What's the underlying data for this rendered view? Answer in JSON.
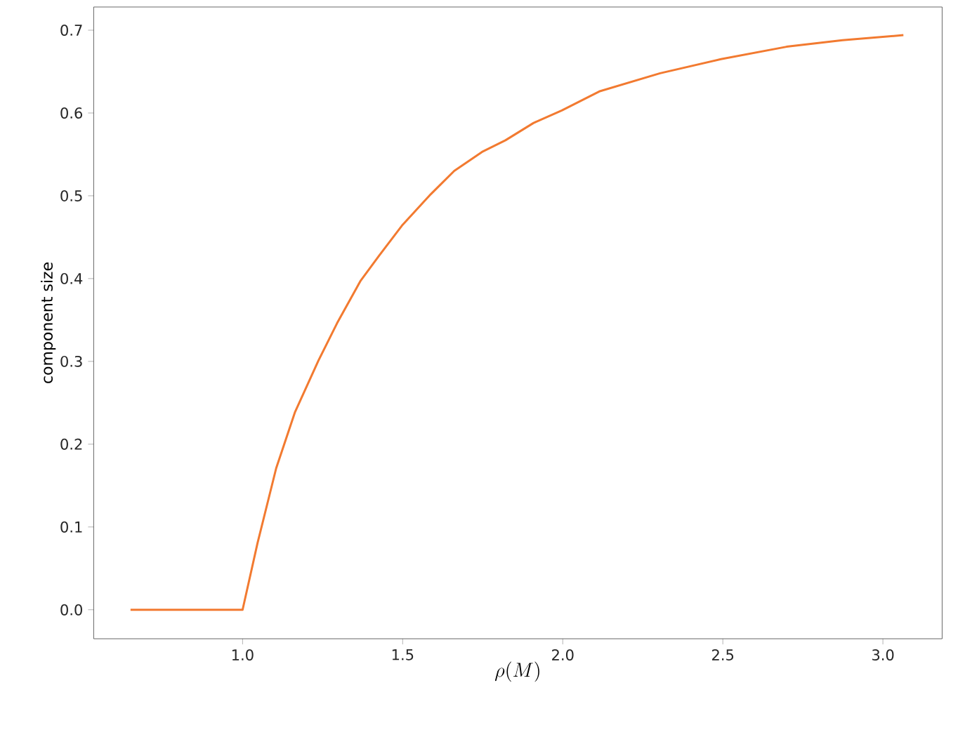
{
  "chart_data": {
    "type": "line",
    "xlabel": "\\rho(M)",
    "ylabel": "component size",
    "x": [
      0.65,
      1.0,
      1.047,
      1.105,
      1.164,
      1.237,
      1.295,
      1.368,
      1.427,
      1.5,
      1.588,
      1.661,
      1.748,
      1.821,
      1.909,
      1.997,
      2.114,
      2.304,
      2.494,
      2.699,
      2.874,
      3.064
    ],
    "series": [
      {
        "color": "#f27a30",
        "values": [
          0,
          0,
          0.081,
          0.171,
          0.239,
          0.301,
          0.346,
          0.397,
          0.428,
          0.465,
          0.502,
          0.53,
          0.553,
          0.567,
          0.588,
          0.603,
          0.626,
          0.648,
          0.665,
          0.68,
          0.688,
          0.694
        ]
      }
    ],
    "xlim": [
      0.535,
      3.185
    ],
    "ylim": [
      -0.035,
      0.728
    ],
    "xticks": [
      {
        "value": 1.0,
        "label": "1.0"
      },
      {
        "value": 1.5,
        "label": "1.5"
      },
      {
        "value": 2.0,
        "label": "2.0"
      },
      {
        "value": 2.5,
        "label": "2.5"
      },
      {
        "value": 3.0,
        "label": "3.0"
      }
    ],
    "yticks": [
      {
        "value": 0.0,
        "label": "0.0"
      },
      {
        "value": 0.1,
        "label": "0.1"
      },
      {
        "value": 0.2,
        "label": "0.2"
      },
      {
        "value": 0.3,
        "label": "0.3"
      },
      {
        "value": 0.4,
        "label": "0.4"
      },
      {
        "value": 0.5,
        "label": "0.5"
      },
      {
        "value": 0.6,
        "label": "0.6"
      },
      {
        "value": 0.7,
        "label": "0.7"
      }
    ],
    "grid": false,
    "marker": "none",
    "line_style": "solid"
  }
}
